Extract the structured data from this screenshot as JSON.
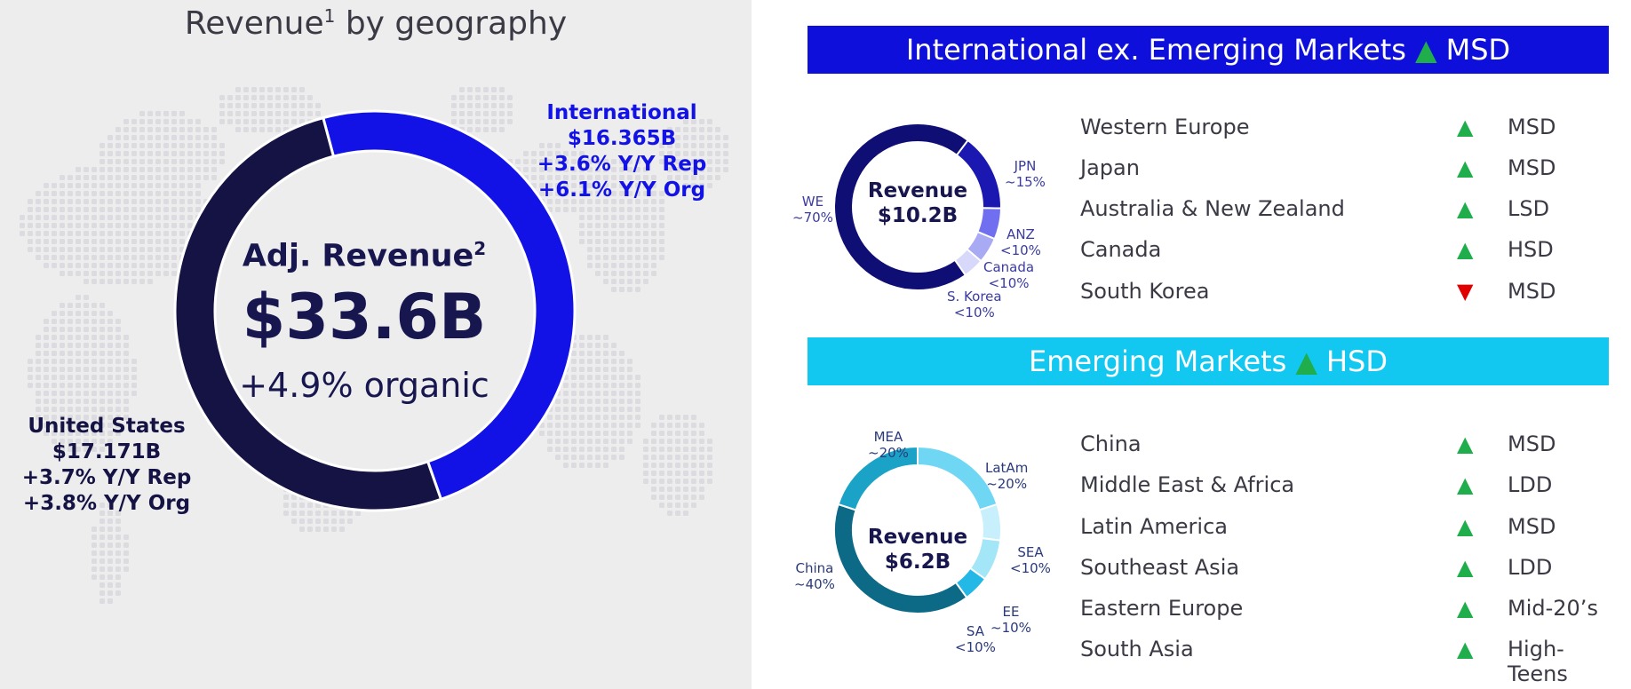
{
  "left": {
    "title": "Revenue",
    "title_sup": "1",
    "title_rest": " by geography",
    "center_label": "Adj. Revenue",
    "center_label_sup": "2",
    "center_value": "$33.6B",
    "center_sub": "+4.9% organic",
    "international": {
      "line1": "International",
      "line2": "$16.365B",
      "line3": "+3.6% Y/Y Rep",
      "line4": "+6.1% Y/Y Org"
    },
    "us": {
      "line1": "United States",
      "line2": "$17.171B",
      "line3": "+3.7% Y/Y Rep",
      "line4": "+3.8% Y/Y Org"
    }
  },
  "intl_banner": {
    "text": "International ex. Emerging Markets",
    "triangle": "▲",
    "grade": "MSD"
  },
  "intl_donut": {
    "center1": "Revenue",
    "center2": "$10.2B"
  },
  "intl_labels": {
    "we1": "WE",
    "we2": "~70%",
    "jpn1": "JPN",
    "jpn2": "~15%",
    "anz1": "ANZ",
    "anz2": "<10%",
    "can1": "Canada",
    "can2": "<10%",
    "kor1": "S. Korea",
    "kor2": "<10%"
  },
  "intl_rows": [
    {
      "region": "Western Europe",
      "arrow": "▲",
      "grade": "MSD"
    },
    {
      "region": "Japan",
      "arrow": "▲",
      "grade": "MSD"
    },
    {
      "region": "Australia & New Zealand",
      "arrow": "▲",
      "grade": "LSD"
    },
    {
      "region": "Canada",
      "arrow": "▲",
      "grade": "HSD"
    },
    {
      "region": "South Korea",
      "arrow": "▼",
      "grade": "MSD"
    }
  ],
  "em_banner": {
    "text": "Emerging Markets",
    "triangle": "▲",
    "grade": "HSD"
  },
  "em_donut": {
    "center1": "Revenue",
    "center2": "$6.2B"
  },
  "em_labels": {
    "mea1": "MEA",
    "mea2": "~20%",
    "latam1": "LatAm",
    "latam2": "~20%",
    "sea1": "SEA",
    "sea2": "<10%",
    "ee1": "EE",
    "ee2": "~10%",
    "sa1": "SA",
    "sa2": "<10%",
    "china1": "China",
    "china2": "~40%"
  },
  "em_rows": [
    {
      "region": "China",
      "arrow": "▲",
      "grade": "MSD"
    },
    {
      "region": "Middle East & Africa",
      "arrow": "▲",
      "grade": "LDD"
    },
    {
      "region": "Latin America",
      "arrow": "▲",
      "grade": "MSD"
    },
    {
      "region": "Southeast Asia",
      "arrow": "▲",
      "grade": "LDD"
    },
    {
      "region": "Eastern Europe",
      "arrow": "▲",
      "grade": "Mid-20’s"
    },
    {
      "region": "South Asia",
      "arrow": "▲",
      "grade": "High-Teens"
    }
  ],
  "colors": {
    "us": "#151244",
    "international": "#1212e6",
    "banner_intl": "#0f0fdc",
    "banner_em": "#12c8f0",
    "up": "#1fae4b",
    "down": "#e00000"
  },
  "chart_data": [
    {
      "type": "pie",
      "title": "Revenue by geography",
      "categories": [
        "International",
        "United States"
      ],
      "values": [
        16.365,
        17.171
      ],
      "unit": "$B"
    },
    {
      "type": "pie",
      "categories": [
        "WE",
        "JPN",
        "ANZ",
        "Canada",
        "S. Korea"
      ],
      "values": [
        70,
        15,
        6,
        5,
        4
      ],
      "unit": "%",
      "colors": [
        "#0f0e74",
        "#1a18b0",
        "#6f6ff0",
        "#a9aaf4",
        "#d7d8fa"
      ]
    },
    {
      "type": "pie",
      "categories": [
        "China",
        "MEA",
        "LatAm",
        "SEA",
        "EE",
        "SA"
      ],
      "values": [
        40,
        20,
        20,
        7,
        8,
        5
      ],
      "unit": "%",
      "colors": [
        "#0d6a86",
        "#1ba3c7",
        "#6fd7f4",
        "#c7f0fc",
        "#a2e6f8",
        "#23b8e6"
      ]
    }
  ]
}
